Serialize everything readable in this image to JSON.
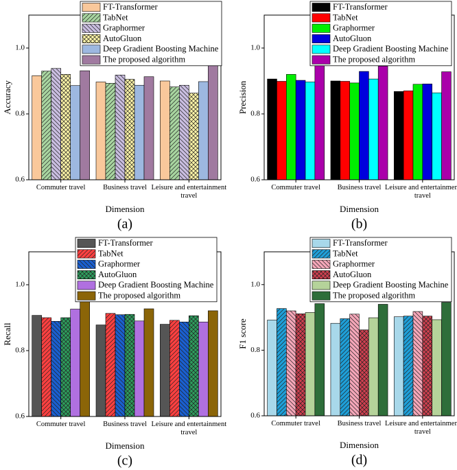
{
  "chart_data": [
    {
      "type": "bar",
      "label": "(a)",
      "xlabel": "Dimension",
      "ylabel": "Accuracy",
      "categories": [
        "Commuter travel",
        "Business travel",
        "Leisure and entertainment travel"
      ],
      "ylim": [
        0.6,
        1.1
      ],
      "yticks": [
        0.6,
        0.8,
        {
          "value": 1,
          "label": "1.0"
        }
      ],
      "legend": "upper center",
      "series": [
        {
          "name": "FT-Transformer",
          "color": "#f9c89b",
          "values": [
            0.916,
            0.897,
            0.9
          ]
        },
        {
          "name": "TabNet",
          "color": "#a8d5a0",
          "hatch": "/",
          "values": [
            0.93,
            0.893,
            0.882
          ]
        },
        {
          "name": "Graphormer",
          "color": "#c9bde0",
          "hatch": "\\",
          "values": [
            0.938,
            0.918,
            0.887
          ]
        },
        {
          "name": "AutoGluon",
          "color": "#fff5a8",
          "hatch": "x",
          "values": [
            0.92,
            0.905,
            0.863
          ]
        },
        {
          "name": "Deep Gradient Boosting Machine",
          "color": "#9db8e0",
          "values": [
            0.886,
            0.887,
            0.898
          ]
        },
        {
          "name": "The proposed algorithm",
          "color": "#a07aa0",
          "values": [
            0.931,
            0.913,
            0.948
          ]
        }
      ]
    },
    {
      "type": "bar",
      "label": "(b)",
      "xlabel": "Dimension",
      "ylabel": "Precision",
      "categories": [
        "Commuter travel",
        "Business travel",
        "Leisure and entertainment travel"
      ],
      "ylim": [
        0.6,
        1.1
      ],
      "yticks": [
        0.6,
        0.8,
        {
          "value": 1,
          "label": "1.0"
        }
      ],
      "legend": "upper center",
      "series": [
        {
          "name": "FT-Transformer",
          "color": "#000000",
          "values": [
            0.906,
            0.9,
            0.868
          ]
        },
        {
          "name": "TabNet",
          "color": "#ff0000",
          "values": [
            0.899,
            0.899,
            0.87
          ]
        },
        {
          "name": "Graphormer",
          "color": "#00ee00",
          "values": [
            0.92,
            0.894,
            0.89
          ]
        },
        {
          "name": "AutoGluon",
          "color": "#0000dd",
          "values": [
            0.902,
            0.929,
            0.891
          ]
        },
        {
          "name": "Deep Gradient Boosting Machine",
          "color": "#00ffff",
          "values": [
            0.897,
            0.906,
            0.864
          ]
        },
        {
          "name": "The proposed algorithm",
          "color": "#aa00aa",
          "values": [
            0.948,
            0.945,
            0.928
          ]
        }
      ]
    },
    {
      "type": "bar",
      "label": "(c)",
      "xlabel": "Dimension",
      "ylabel": "Recall",
      "categories": [
        "Commuter travel",
        "Business travel",
        "Leisure and entertainment travel"
      ],
      "ylim": [
        0.6,
        1.1
      ],
      "yticks": [
        0.6,
        0.8,
        {
          "value": 1,
          "label": "1.0"
        }
      ],
      "legend": "upper center",
      "series": [
        {
          "name": "FT-Transformer",
          "color": "#555555",
          "values": [
            0.907,
            0.878,
            0.88
          ]
        },
        {
          "name": "TabNet",
          "color": "#ff4040",
          "hatch": "/",
          "values": [
            0.9,
            0.913,
            0.892
          ]
        },
        {
          "name": "Graphormer",
          "color": "#1a5fd0",
          "hatch": "\\",
          "values": [
            0.889,
            0.909,
            0.887
          ]
        },
        {
          "name": "AutoGluon",
          "color": "#2e9e5e",
          "hatch": "x",
          "values": [
            0.9,
            0.91,
            0.906
          ]
        },
        {
          "name": "Deep Gradient Boosting Machine",
          "color": "#b070e0",
          "values": [
            0.926,
            0.89,
            0.887
          ]
        },
        {
          "name": "The proposed algorithm",
          "color": "#8b6508",
          "values": [
            0.96,
            0.927,
            0.921
          ]
        }
      ]
    },
    {
      "type": "bar",
      "label": "(d)",
      "xlabel": "Dimension",
      "ylabel": "F1 score",
      "categories": [
        "Commuter travel",
        "Business travel",
        "Leisure and entertainment travel"
      ],
      "ylim": [
        0.6,
        1.1
      ],
      "yticks": [
        0.6,
        0.8,
        {
          "value": 1,
          "label": "1.0"
        }
      ],
      "legend": "upper center",
      "series": [
        {
          "name": "FT-Transformer",
          "color": "#a8d8ea",
          "values": [
            0.892,
            0.882,
            0.902
          ]
        },
        {
          "name": "TabNet",
          "color": "#1e9fd8",
          "hatch": "/",
          "values": [
            0.927,
            0.896,
            0.904
          ]
        },
        {
          "name": "Graphormer",
          "color": "#f4a6b8",
          "hatch": "\\",
          "values": [
            0.92,
            0.91,
            0.918
          ]
        },
        {
          "name": "AutoGluon",
          "color": "#d04050",
          "hatch": "x",
          "values": [
            0.911,
            0.862,
            0.904
          ]
        },
        {
          "name": "Deep Gradient Boosting Machine",
          "color": "#b5d39a",
          "values": [
            0.915,
            0.899,
            0.893
          ]
        },
        {
          "name": "The proposed algorithm",
          "color": "#2e6e3a",
          "values": [
            0.942,
            0.94,
            0.946
          ]
        }
      ]
    }
  ]
}
